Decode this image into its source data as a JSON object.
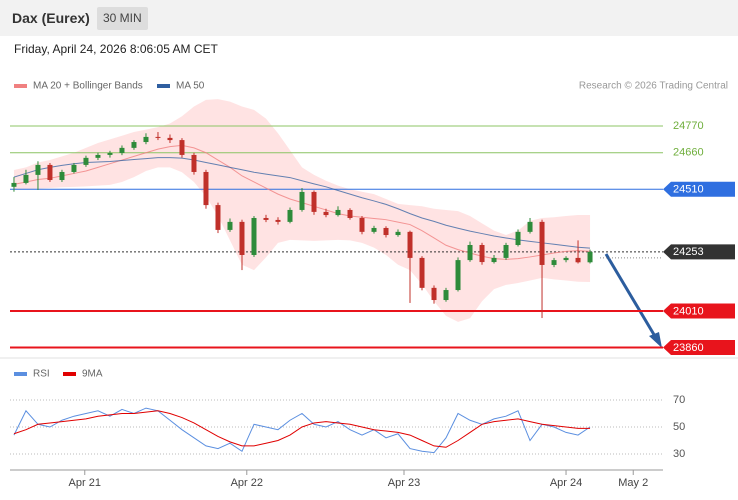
{
  "header": {
    "title": "Dax (Eurex)",
    "interval": "30 MIN",
    "timestamp": "Friday, April 24, 2026 8:06:05 AM CET"
  },
  "copyright": "Research © 2026 Trading Central",
  "chart_data": [
    {
      "type": "candlestick",
      "up_color": "#2e8b3a",
      "down_color": "#c0302a",
      "ohlc": [
        [
          24520,
          24560,
          24500,
          24536
        ],
        [
          24536,
          24590,
          24530,
          24569
        ],
        [
          24569,
          24625,
          24507,
          24610
        ],
        [
          24610,
          24618,
          24540,
          24548
        ],
        [
          24548,
          24590,
          24540,
          24581
        ],
        [
          24581,
          24618,
          24575,
          24610
        ],
        [
          24610,
          24648,
          24602,
          24639
        ],
        [
          24639,
          24660,
          24630,
          24651
        ],
        [
          24651,
          24668,
          24640,
          24659
        ],
        [
          24659,
          24690,
          24650,
          24680
        ],
        [
          24680,
          24712,
          24672,
          24704
        ],
        [
          24704,
          24740,
          24695,
          24725
        ],
        [
          24725,
          24745,
          24712,
          24721
        ],
        [
          24721,
          24735,
          24700,
          24712
        ],
        [
          24712,
          24720,
          24640,
          24651
        ],
        [
          24651,
          24660,
          24570,
          24581
        ],
        [
          24581,
          24590,
          24430,
          24445
        ],
        [
          24445,
          24455,
          24330,
          24343
        ],
        [
          24343,
          24390,
          24335,
          24376
        ],
        [
          24376,
          24385,
          24178,
          24240
        ],
        [
          24240,
          24400,
          24232,
          24392
        ],
        [
          24392,
          24405,
          24375,
          24384
        ],
        [
          24384,
          24395,
          24365,
          24376
        ],
        [
          24376,
          24435,
          24370,
          24425
        ],
        [
          24425,
          24515,
          24418,
          24499
        ],
        [
          24499,
          24505,
          24405,
          24417
        ],
        [
          24417,
          24430,
          24395,
          24404
        ],
        [
          24404,
          24440,
          24398,
          24425
        ],
        [
          24425,
          24432,
          24385,
          24392
        ],
        [
          24392,
          24400,
          24325,
          24335
        ],
        [
          24335,
          24360,
          24328,
          24351
        ],
        [
          24351,
          24358,
          24312,
          24322
        ],
        [
          24322,
          24345,
          24315,
          24335
        ],
        [
          24335,
          24340,
          24043,
          24228
        ],
        [
          24228,
          24235,
          24095,
          24105
        ],
        [
          24105,
          24115,
          24040,
          24055
        ],
        [
          24055,
          24105,
          24048,
          24096
        ],
        [
          24096,
          24230,
          24090,
          24219
        ],
        [
          24219,
          24295,
          24212,
          24281
        ],
        [
          24281,
          24290,
          24200,
          24211
        ],
        [
          24211,
          24240,
          24205,
          24228
        ],
        [
          24228,
          24290,
          24220,
          24281
        ],
        [
          24281,
          24345,
          24275,
          24335
        ],
        [
          24335,
          24392,
          24328,
          24376
        ],
        [
          24376,
          24385,
          23981,
          24199
        ],
        [
          24199,
          24228,
          24190,
          24219
        ],
        [
          24219,
          24235,
          24210,
          24228
        ],
        [
          24228,
          24300,
          24205,
          24210
        ],
        [
          24210,
          24262,
          24205,
          24253
        ]
      ],
      "series": [
        {
          "name": "MA 20 + Bollinger Bands",
          "color": "#f08080",
          "band_color": "#ffdcdc",
          "values": [
            24530,
            24540,
            24550,
            24555,
            24565,
            24575,
            24585,
            24600,
            24615,
            24630,
            24645,
            24660,
            24675,
            24685,
            24690,
            24680,
            24660,
            24630,
            24600,
            24565,
            24540,
            24515,
            24490,
            24470,
            24455,
            24440,
            24425,
            24410,
            24400,
            24395,
            24390,
            24385,
            24375,
            24365,
            24340,
            24310,
            24280,
            24262,
            24248,
            24235,
            24225,
            24222,
            24225,
            24232,
            24240,
            24248,
            24255,
            24258,
            24255
          ],
          "upper": [
            24589,
            24600,
            24620,
            24630,
            24645,
            24660,
            24680,
            24700,
            24715,
            24730,
            24745,
            24755,
            24765,
            24780,
            24810,
            24850,
            24877,
            24880,
            24870,
            24850,
            24836,
            24800,
            24740,
            24670,
            24600,
            24569,
            24545,
            24525,
            24510,
            24500,
            24490,
            24470,
            24450,
            24445,
            24440,
            24430,
            24425,
            24420,
            24400,
            24370,
            24340,
            24322,
            24340,
            24380,
            24392,
            24395,
            24400,
            24404,
            24404
          ],
          "lower": [
            24507,
            24510,
            24512,
            24515,
            24518,
            24520,
            24522,
            24525,
            24528,
            24540,
            24560,
            24585,
            24600,
            24600,
            24580,
            24540,
            24480,
            24400,
            24300,
            24200,
            24178,
            24230,
            24290,
            24302,
            24300,
            24298,
            24300,
            24302,
            24300,
            24290,
            24270,
            24240,
            24200,
            24178,
            24120,
            24050,
            23990,
            23965,
            23980,
            24050,
            24100,
            24117,
            24125,
            24135,
            24146,
            24140,
            24135,
            24130,
            24129
          ]
        },
        {
          "name": "MA 50",
          "color": "#2f5fa0",
          "values": [
            24560,
            24575,
            24590,
            24600,
            24608,
            24615,
            24620,
            24622,
            24624,
            24628,
            24632,
            24636,
            24640,
            24640,
            24638,
            24630,
            24620,
            24610,
            24600,
            24590,
            24580,
            24572,
            24565,
            24558,
            24545,
            24532,
            24520,
            24505,
            24490,
            24475,
            24462,
            24448,
            24430,
            24410,
            24392,
            24378,
            24362,
            24350,
            24338,
            24328,
            24318,
            24310,
            24302,
            24296,
            24290,
            24284,
            24278,
            24272,
            24268
          ]
        }
      ],
      "levels": [
        {
          "value": 24770,
          "color": "#8cc464",
          "marker": "label"
        },
        {
          "value": 24660,
          "color": "#8cc464",
          "marker": "label"
        },
        {
          "value": 24510,
          "color": "#2f6fe0",
          "marker": "tag"
        },
        {
          "value": 24253,
          "color": "#333333",
          "marker": "tag",
          "dotted": true
        },
        {
          "value": 24010,
          "color": "#e8141c",
          "marker": "tag"
        },
        {
          "value": 23860,
          "color": "#e8141c",
          "marker": "tag"
        }
      ],
      "ylim": [
        23800,
        25050
      ],
      "xlim": [
        -0.33,
        54.08
      ],
      "xticks": [
        {
          "value": 5.9,
          "label": "Apr 21"
        },
        {
          "value": 19.4,
          "label": "Apr 22"
        },
        {
          "value": 32.5,
          "label": "Apr 23"
        },
        {
          "value": 46,
          "label": "Apr 24"
        },
        {
          "value": 51.6,
          "label": "May 2"
        }
      ]
    },
    {
      "type": "line",
      "series": [
        {
          "name": "RSI",
          "color": "#5b8fe0",
          "values": [
            44,
            62,
            52,
            50,
            55,
            58,
            60,
            62,
            58,
            63,
            60,
            64,
            62,
            55,
            48,
            42,
            36,
            34,
            38,
            32,
            52,
            50,
            48,
            55,
            60,
            52,
            50,
            54,
            48,
            44,
            48,
            42,
            45,
            34,
            32,
            31,
            42,
            60,
            55,
            52,
            56,
            58,
            62,
            40,
            52,
            50,
            46,
            44,
            50
          ]
        },
        {
          "name": "9MA",
          "color": "#e00000",
          "values": [
            45,
            48,
            52,
            53,
            54,
            55,
            56,
            58,
            59,
            60,
            60,
            61,
            62,
            60,
            57,
            53,
            48,
            43,
            39,
            36,
            36,
            38,
            40,
            44,
            50,
            53,
            54,
            53,
            52,
            50,
            48,
            47,
            46,
            44,
            40,
            36,
            35,
            40,
            46,
            52,
            54,
            55,
            56,
            54,
            52,
            51,
            50,
            49,
            49
          ]
        }
      ],
      "ylim": [
        20,
        80
      ],
      "yticks": [
        70,
        50,
        30
      ],
      "xlim": [
        -0.33,
        54.08
      ]
    }
  ]
}
